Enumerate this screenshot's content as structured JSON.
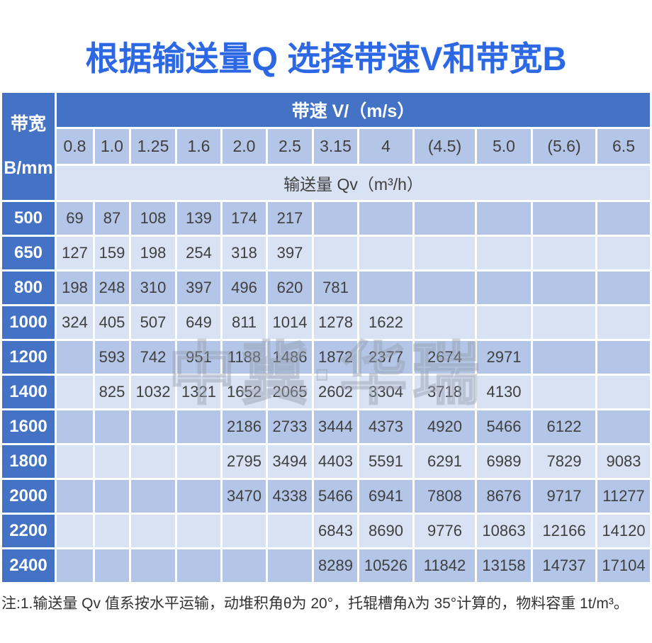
{
  "title": "根据输送量Q 选择带速V和带宽B",
  "watermark": "中冀·华瑞",
  "note": "注:1.输送量 Qv 值系按水平运输，动堆积角θ为 20°，托辊槽角λ为 35°计算的，物料容重 1t/m³。",
  "colors": {
    "title_blue": "#2d68e4",
    "header_blue": "#4472c4",
    "cell_medium_blue": "#b4c6e7",
    "cell_light_blue": "#d9e2f3",
    "cell_text": "#3f3f3f",
    "header_text": "#ffffff"
  },
  "chart_data": {
    "type": "table",
    "title": "根据输送量Q 选择带速V和带宽B",
    "col_group_label": "带速 V/（m/s）",
    "row_group_label_line1": "带宽",
    "row_group_label_line2": "B/mm",
    "value_label": "输送量 Qv（m³/h）",
    "columns": [
      "0.8",
      "1.0",
      "1.25",
      "1.6",
      "2.0",
      "2.5",
      "3.15",
      "4",
      "(4.5)",
      "5.0",
      "(5.6)",
      "6.5"
    ],
    "rows": [
      {
        "band_width": "500",
        "values": [
          "69",
          "87",
          "108",
          "139",
          "174",
          "217",
          "",
          "",
          "",
          "",
          "",
          ""
        ]
      },
      {
        "band_width": "650",
        "values": [
          "127",
          "159",
          "198",
          "254",
          "318",
          "397",
          "",
          "",
          "",
          "",
          "",
          ""
        ]
      },
      {
        "band_width": "800",
        "values": [
          "198",
          "248",
          "310",
          "397",
          "496",
          "620",
          "781",
          "",
          "",
          "",
          "",
          ""
        ]
      },
      {
        "band_width": "1000",
        "values": [
          "324",
          "405",
          "507",
          "649",
          "811",
          "1014",
          "1278",
          "1622",
          "",
          "",
          "",
          ""
        ]
      },
      {
        "band_width": "1200",
        "values": [
          "",
          "593",
          "742",
          "951",
          "1188",
          "1486",
          "1872",
          "2377",
          "2674",
          "2971",
          "",
          ""
        ]
      },
      {
        "band_width": "1400",
        "values": [
          "",
          "825",
          "1032",
          "1321",
          "1652",
          "2065",
          "2602",
          "3304",
          "3718",
          "4130",
          "",
          ""
        ]
      },
      {
        "band_width": "1600",
        "values": [
          "",
          "",
          "",
          "",
          "2186",
          "2733",
          "3444",
          "4373",
          "4920",
          "5466",
          "6122",
          ""
        ]
      },
      {
        "band_width": "1800",
        "values": [
          "",
          "",
          "",
          "",
          "2795",
          "3494",
          "4403",
          "5591",
          "6291",
          "6989",
          "7829",
          "9083"
        ]
      },
      {
        "band_width": "2000",
        "values": [
          "",
          "",
          "",
          "",
          "3470",
          "4338",
          "5466",
          "6941",
          "7808",
          "8676",
          "9717",
          "11277"
        ]
      },
      {
        "band_width": "2200",
        "values": [
          "",
          "",
          "",
          "",
          "",
          "",
          "6843",
          "8690",
          "9776",
          "10863",
          "12166",
          "14120"
        ]
      },
      {
        "band_width": "2400",
        "values": [
          "",
          "",
          "",
          "",
          "",
          "",
          "8289",
          "10526",
          "11842",
          "13158",
          "14737",
          "17104"
        ]
      }
    ]
  }
}
